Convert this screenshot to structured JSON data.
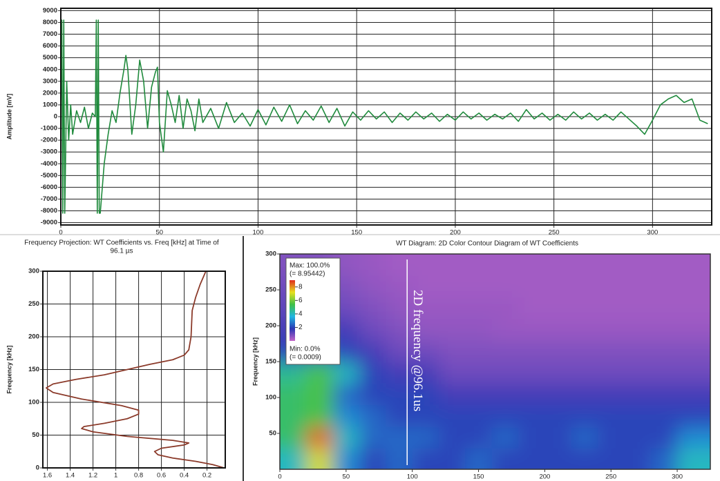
{
  "chart_data": [
    {
      "type": "line",
      "ylabel": "Amplitude [mV]",
      "xlim": [
        0,
        330
      ],
      "xticks": [
        0,
        50,
        100,
        150,
        200,
        250,
        300
      ],
      "ylim": [
        -9200,
        9200
      ],
      "yticks": [
        -9000,
        -8000,
        -7000,
        -6000,
        -5000,
        -4000,
        -3000,
        -2000,
        -1000,
        0,
        1000,
        2000,
        3000,
        4000,
        5000,
        6000,
        7000,
        8000,
        9000
      ],
      "grid": true,
      "series": [
        {
          "color": "#1f8a3c",
          "x": [
            0,
            0.5,
            1,
            1.5,
            2,
            3,
            4,
            5,
            6,
            8,
            10,
            12,
            14,
            16,
            17.5,
            18,
            18.5,
            19,
            19.5,
            20,
            22,
            24,
            26,
            28,
            30,
            32,
            33,
            34,
            36,
            38,
            40,
            42,
            44,
            46,
            48,
            49,
            50,
            52,
            54,
            56,
            58,
            60,
            62,
            64,
            66,
            68,
            70,
            72,
            76,
            80,
            84,
            88,
            92,
            96,
            100,
            104,
            108,
            112,
            116,
            120,
            124,
            128,
            132,
            136,
            140,
            144,
            148,
            152,
            156,
            160,
            164,
            168,
            172,
            176,
            180,
            184,
            188,
            192,
            196,
            200,
            204,
            208,
            212,
            216,
            220,
            224,
            228,
            232,
            236,
            240,
            244,
            248,
            252,
            256,
            260,
            264,
            268,
            272,
            276,
            280,
            284,
            288,
            292,
            296,
            300,
            304,
            308,
            312,
            316,
            320,
            324,
            328
          ],
          "values": [
            0,
            8200,
            -8200,
            8200,
            -8200,
            3000,
            -2000,
            1000,
            -1500,
            500,
            -500,
            800,
            -1000,
            300,
            0,
            8200,
            -8200,
            8200,
            -8200,
            -8200,
            -4000,
            -1500,
            500,
            -500,
            2000,
            4000,
            5200,
            4000,
            -1500,
            1000,
            4800,
            3000,
            -1000,
            2500,
            3800,
            4200,
            -500,
            -3000,
            2200,
            1000,
            -500,
            1800,
            -1000,
            1500,
            500,
            -1200,
            1500,
            -500,
            700,
            -1000,
            1200,
            -500,
            300,
            -800,
            600,
            -700,
            800,
            -400,
            1000,
            -600,
            500,
            -300,
            900,
            -500,
            700,
            -800,
            400,
            -300,
            500,
            -200,
            400,
            -500,
            300,
            -300,
            400,
            -200,
            300,
            -400,
            200,
            -300,
            400,
            -200,
            300,
            -300,
            200,
            -200,
            300,
            -400,
            600,
            -200,
            300,
            -300,
            200,
            -300,
            400,
            -200,
            300,
            -300,
            200,
            -300,
            400,
            -200,
            -800,
            -1500,
            -300,
            1000,
            1500,
            1800,
            1200,
            1500,
            -300,
            -600
          ]
        }
      ]
    },
    {
      "type": "line",
      "title": [
        "Frequency Projection: WT Coefficients vs. Freq [kHz] at Time of",
        "96.1 µs"
      ],
      "ylabel": "Frequency [kHz]",
      "xlim": [
        1.64,
        0.04
      ],
      "xticks": [
        1.6,
        1.4,
        1.2,
        1,
        0.8,
        0.6,
        0.4,
        0.2
      ],
      "ylim": [
        0,
        300
      ],
      "yticks": [
        0,
        50,
        100,
        150,
        200,
        250,
        300
      ],
      "grid": true,
      "series": [
        {
          "color": "#8b3a2a",
          "x": [
            0.05,
            0.15,
            0.3,
            0.5,
            0.63,
            0.66,
            0.6,
            0.4,
            0.36,
            0.5,
            0.9,
            1.2,
            1.3,
            1.28,
            1.1,
            0.9,
            0.8,
            0.8,
            0.95,
            1.3,
            1.55,
            1.61,
            1.55,
            1.35,
            1.1,
            0.9,
            0.7,
            0.5,
            0.4,
            0.36,
            0.34,
            0.33,
            0.3,
            0.26,
            0.21
          ],
          "values": [
            0,
            5,
            10,
            15,
            20,
            25,
            30,
            35,
            38,
            42,
            48,
            55,
            60,
            63,
            68,
            75,
            82,
            88,
            95,
            105,
            115,
            122,
            128,
            135,
            142,
            150,
            158,
            165,
            172,
            180,
            200,
            240,
            260,
            280,
            300
          ]
        }
      ]
    },
    {
      "type": "heatmap",
      "title": "WT Diagram: 2D Color Contour Diagram of WT Coefficients",
      "ylabel": "Frequency [kHz]",
      "xlim": [
        0,
        325
      ],
      "xticks": [
        0,
        50,
        100,
        150,
        200,
        250,
        300
      ],
      "ylim": [
        0,
        300
      ],
      "yticks": [
        50,
        100,
        150,
        200,
        250,
        300
      ],
      "zlim": [
        0,
        9
      ],
      "colorscale": [
        "#c466c8",
        "#2a36b4",
        "#1fb6e2",
        "#3fc047",
        "#e6e01e",
        "#e02c1e"
      ],
      "colorbar_ticks": [
        8,
        6,
        4,
        2
      ],
      "legend_text": [
        "Max: 100.0%",
        "(= 8.95442)",
        "Min: 0.0%",
        "(= 0.0009)"
      ],
      "annotation": "2D frequency @96.1us",
      "marker_x": 96.1,
      "x": [
        10,
        30,
        50,
        70,
        90,
        110,
        130,
        150,
        170,
        190,
        210,
        230,
        250,
        270,
        290,
        310
      ],
      "y": [
        15,
        45,
        75,
        105,
        135,
        165,
        195,
        225,
        255,
        285
      ],
      "z": [
        [
          4,
          7,
          3,
          2,
          2.5,
          2,
          2,
          2.5,
          2,
          2,
          2,
          2,
          2,
          2,
          2.5,
          4
        ],
        [
          5,
          8.5,
          4,
          2.5,
          2.5,
          2.5,
          2,
          2,
          2.5,
          2,
          2,
          2.5,
          2,
          2,
          2,
          3
        ],
        [
          5,
          5.5,
          3,
          2.5,
          2,
          2,
          2,
          2,
          2,
          2,
          2,
          2,
          2,
          2,
          2,
          2
        ],
        [
          5,
          5.5,
          2.5,
          2,
          2,
          2,
          1.5,
          1.5,
          1.5,
          1.5,
          1.5,
          1.5,
          1.5,
          1.5,
          1.5,
          1.5
        ],
        [
          4.5,
          5.5,
          4,
          2,
          1.5,
          1.5,
          1,
          1,
          1,
          1,
          1,
          1,
          1,
          1,
          1,
          1
        ],
        [
          2,
          2.5,
          2,
          1.5,
          1,
          1,
          0.8,
          0.8,
          0.8,
          0.8,
          0.8,
          0.8,
          0.8,
          0.8,
          0.8,
          0.8
        ],
        [
          1.5,
          1.5,
          1.5,
          1,
          0.8,
          0.6,
          0.6,
          0.6,
          0.5,
          0.5,
          0.5,
          0.5,
          0.5,
          0.5,
          0.5,
          0.5
        ],
        [
          1.2,
          1.2,
          1,
          0.8,
          0.6,
          0.5,
          0.5,
          0.5,
          0.5,
          0.4,
          0.4,
          0.4,
          0.4,
          0.4,
          0.4,
          0.4
        ],
        [
          1,
          1,
          0.8,
          0.6,
          0.5,
          0.4,
          0.4,
          0.4,
          0.4,
          0.4,
          0.4,
          0.4,
          0.4,
          0.4,
          0.4,
          0.4
        ],
        [
          0.8,
          0.8,
          0.6,
          0.5,
          0.4,
          0.4,
          0.4,
          0.4,
          0.4,
          0.4,
          0.4,
          0.4,
          0.4,
          0.4,
          0.4,
          0.4
        ]
      ]
    }
  ]
}
